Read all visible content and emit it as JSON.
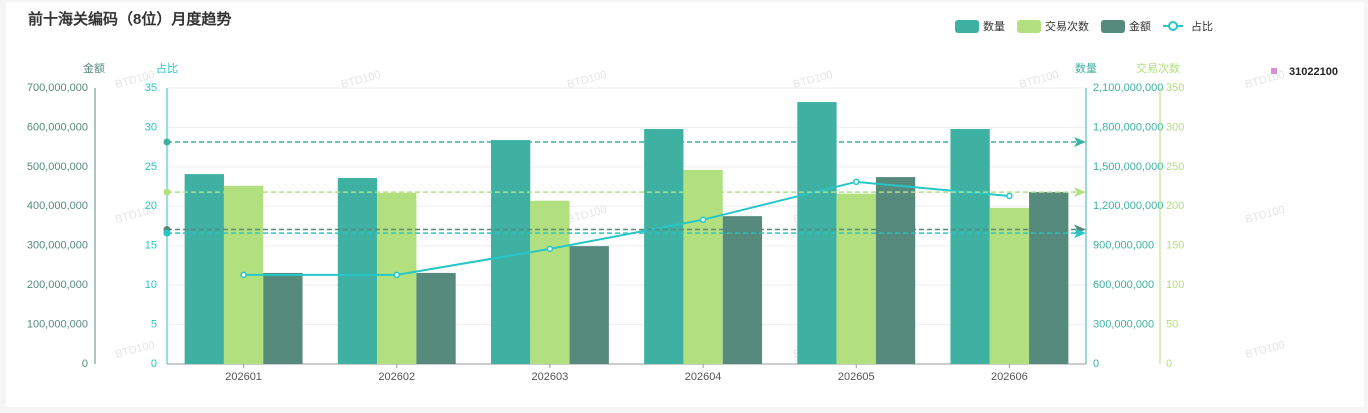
{
  "chart_data": {
    "type": "bar",
    "title": "前十海关编码（8位）月度趋势",
    "watermark": "BTD100",
    "categories": [
      "202601",
      "202602",
      "202603",
      "202604",
      "202605",
      "202606"
    ],
    "series": [
      {
        "name": "数量",
        "type": "bar",
        "axis": "y3",
        "color": "#3eb1a2",
        "values": [
          1445000000,
          1415000000,
          1704000000,
          1788000000,
          1993000000,
          1788000000
        ],
        "average": 1689000000
      },
      {
        "name": "交易次数",
        "type": "bar",
        "axis": "y4",
        "color": "#b2e07f",
        "values": [
          226,
          217,
          207,
          246,
          216,
          198
        ],
        "average": 218
      },
      {
        "name": "金额",
        "type": "bar",
        "axis": "y",
        "color": "#558a7c",
        "values": [
          231000000,
          231000000,
          299000000,
          375000000,
          474000000,
          436000000
        ],
        "average": 341000000
      },
      {
        "name": "占比",
        "type": "line",
        "axis": "y2",
        "color": "#26c6c9",
        "values": [
          11.3,
          11.3,
          14.6,
          18.3,
          23.1,
          21.3
        ],
        "average": 16.6
      }
    ],
    "y_label": "金额",
    "ylim": [
      0,
      700000000
    ],
    "yticks": [
      0,
      {
        "value": 100000000,
        "label": "100,000,000"
      },
      {
        "value": 200000000,
        "label": "200,000,000"
      },
      {
        "value": 300000000,
        "label": "300,000,000"
      },
      {
        "value": 400000000,
        "label": "400,000,000"
      },
      {
        "value": 500000000,
        "label": "500,000,000"
      },
      {
        "value": 600000000,
        "label": "600,000,000"
      },
      {
        "value": 700000000,
        "label": "700,000,000"
      }
    ],
    "y2_label": "占比",
    "y2lim": [
      0,
      35
    ],
    "y2ticks": [
      0,
      5,
      10,
      15,
      20,
      25,
      30,
      35
    ],
    "y3_label": "数量",
    "y3lim": [
      0,
      2100000000
    ],
    "y3ticks": [
      0,
      {
        "value": 300000000,
        "label": "300,000,000"
      },
      {
        "value": 600000000,
        "label": "600,000,000"
      },
      {
        "value": 900000000,
        "label": "900,000,000"
      },
      {
        "value": 1200000000,
        "label": "1,200,000,000"
      },
      {
        "value": 1500000000,
        "label": "1,500,000,000"
      },
      {
        "value": 1800000000,
        "label": "1,800,000,000"
      },
      {
        "value": 2100000000,
        "label": "2,100,000,000"
      }
    ],
    "y4_label": "交易次数",
    "y4lim": [
      0,
      350
    ],
    "y4ticks": [
      0,
      50,
      100,
      150,
      200,
      250,
      300,
      350
    ],
    "grid": true,
    "legend": "top-right",
    "side_legend": {
      "name": "31022100",
      "color": "#d98ed9"
    }
  }
}
